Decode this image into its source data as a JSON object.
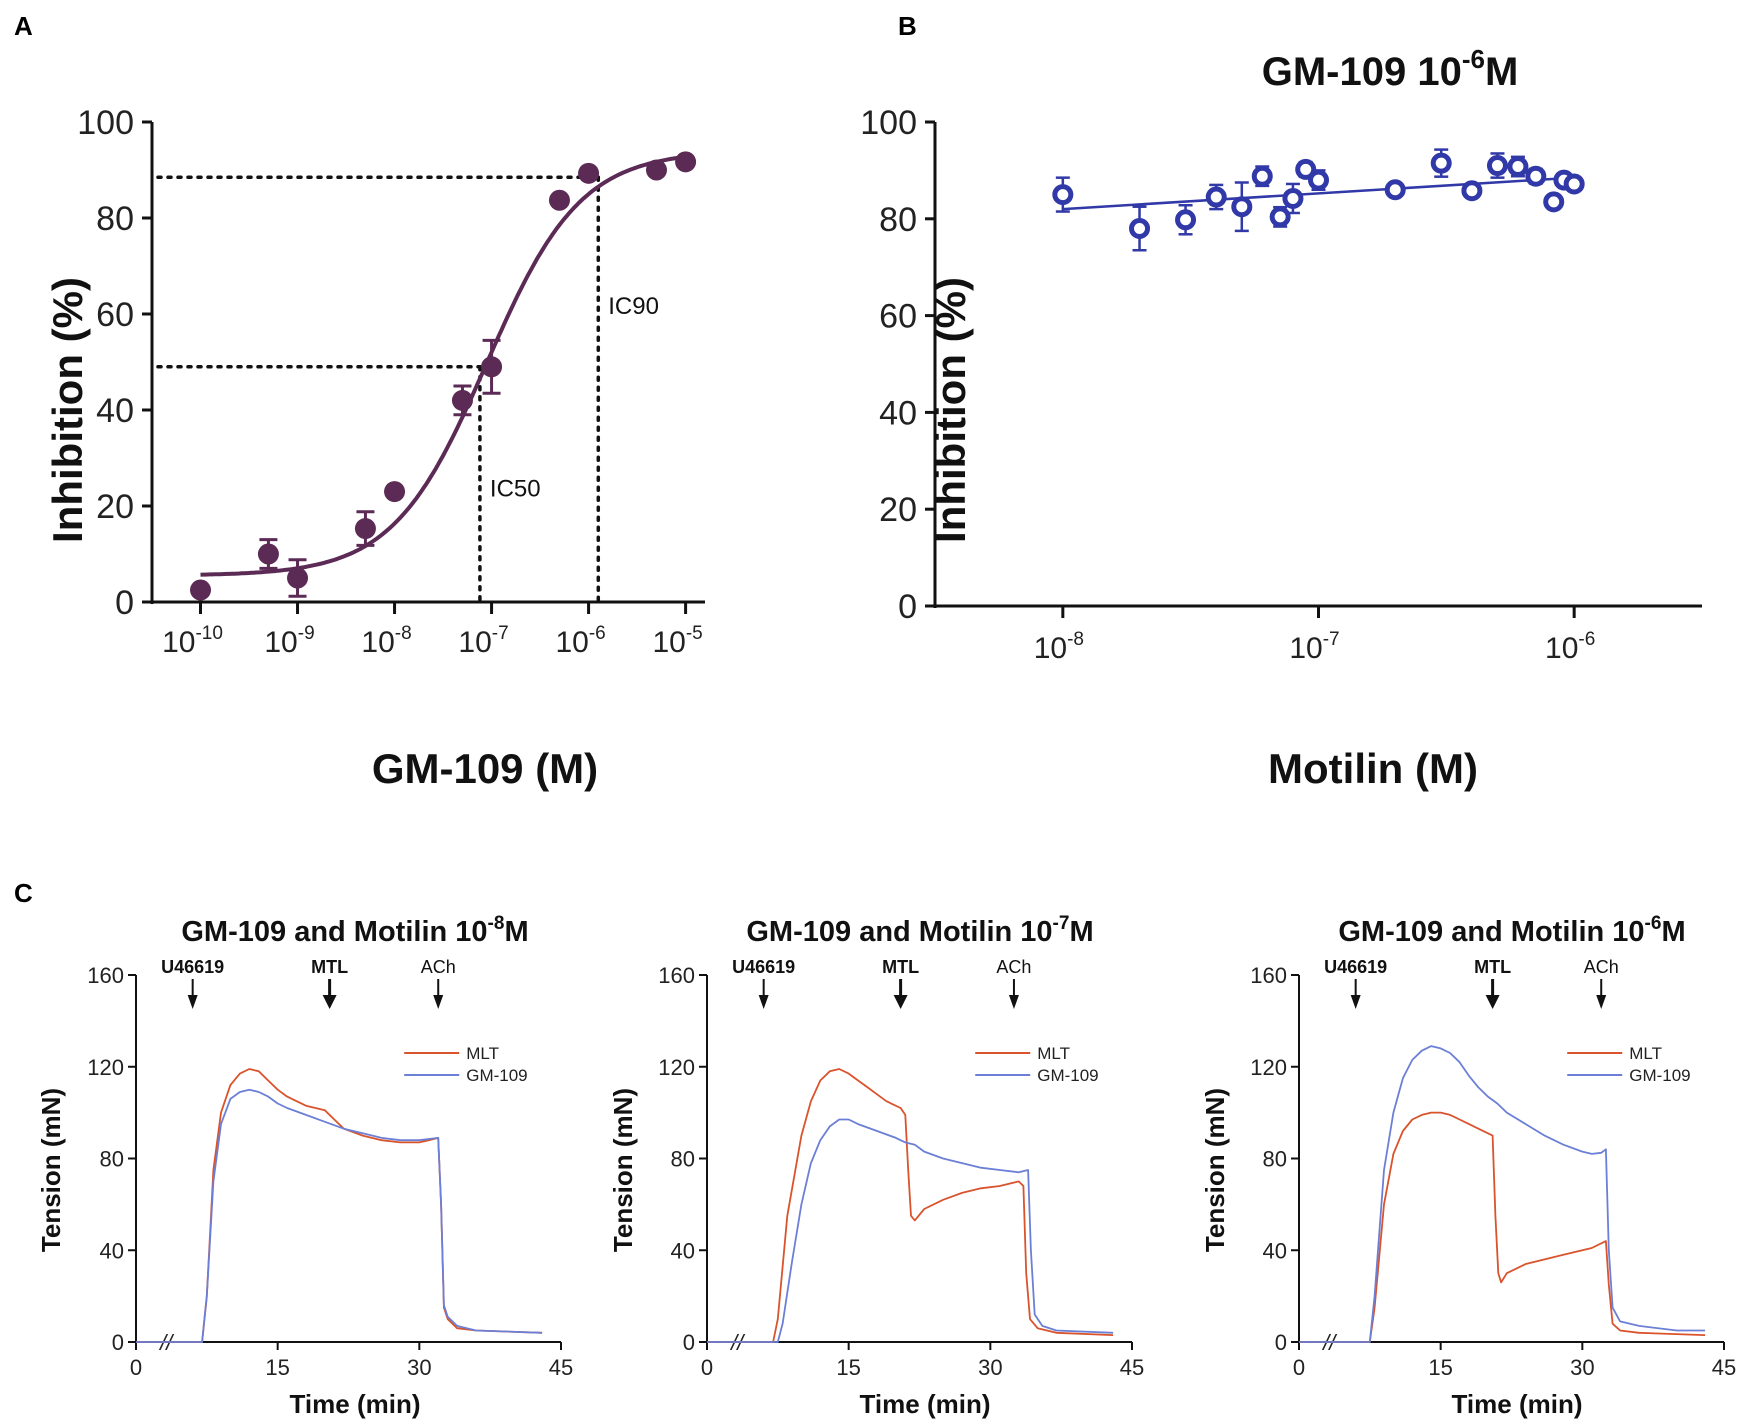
{
  "panel_labels": {
    "a": "A",
    "b": "B",
    "c": "C"
  },
  "colors": {
    "purple": "#5B2A55",
    "blue": "#3138A8",
    "mlt": "#D9532C",
    "gm109": "#6C7FD6",
    "axis": "#111111"
  },
  "chart_data": [
    {
      "id": "A",
      "type": "scatter",
      "title": "",
      "xlabel": "GM-109 (M)",
      "ylabel": "Inhibition (%)",
      "x_scale": "log10",
      "xlim": [
        -10.5,
        -4.8
      ],
      "ylim": [
        0,
        100
      ],
      "yticks": [
        0,
        20,
        40,
        60,
        80,
        100
      ],
      "xtick_labels": [
        {
          "exp": -10,
          "base": "10",
          "sup": "-10"
        },
        {
          "exp": -9,
          "base": "10",
          "sup": "-9"
        },
        {
          "exp": -8,
          "base": "10",
          "sup": "-8"
        },
        {
          "exp": -7,
          "base": "10",
          "sup": "-7"
        },
        {
          "exp": -6,
          "base": "10",
          "sup": "-6"
        },
        {
          "exp": -5,
          "base": "10",
          "sup": "-5"
        }
      ],
      "points": [
        {
          "logx": -10.0,
          "y": 2.5,
          "err": 0
        },
        {
          "logx": -9.3,
          "y": 10.0,
          "err": 3
        },
        {
          "logx": -9.0,
          "y": 5.0,
          "err": 3.8
        },
        {
          "logx": -8.3,
          "y": 15.3,
          "err": 3.5
        },
        {
          "logx": -8.0,
          "y": 23.0,
          "err": 0
        },
        {
          "logx": -7.3,
          "y": 42.0,
          "err": 3
        },
        {
          "logx": -7.0,
          "y": 49.0,
          "err": 5.5
        },
        {
          "logx": -6.3,
          "y": 83.7,
          "err": 0
        },
        {
          "logx": -6.0,
          "y": 89.3,
          "err": 0
        },
        {
          "logx": -5.3,
          "y": 90.0,
          "err": 0
        },
        {
          "logx": -5.0,
          "y": 91.7,
          "err": 0
        }
      ],
      "fit": {
        "bottom": 5.5,
        "top": 94.0,
        "logIC50": -7.05,
        "hill": 0.9
      },
      "reference_lines": [
        {
          "label": "IC50",
          "y": 49,
          "logx": -7.12
        },
        {
          "label": "IC90",
          "y": 88.5,
          "logx": -5.9
        }
      ]
    },
    {
      "id": "B",
      "type": "scatter",
      "title": "GM-109 10",
      "title_sup": "-6",
      "title_suffix": "M",
      "xlabel": "Motilin (M)",
      "ylabel": "Inhibition (%)",
      "x_scale": "log10",
      "xlim": [
        -8.5,
        -5.5
      ],
      "ylim": [
        0,
        100
      ],
      "yticks": [
        0,
        20,
        40,
        60,
        80,
        100
      ],
      "xtick_labels": [
        {
          "exp": -8,
          "base": "10",
          "sup": "-8"
        },
        {
          "exp": -7,
          "base": "10",
          "sup": "-7"
        },
        {
          "exp": -6,
          "base": "10",
          "sup": "-6"
        }
      ],
      "points": [
        {
          "logx": -8.0,
          "y": 85.0,
          "err": 3.5
        },
        {
          "logx": -7.7,
          "y": 78.0,
          "err": 4.5
        },
        {
          "logx": -7.52,
          "y": 79.8,
          "err": 3
        },
        {
          "logx": -7.4,
          "y": 84.5,
          "err": 2.5
        },
        {
          "logx": -7.3,
          "y": 82.5,
          "err": 5
        },
        {
          "logx": -7.22,
          "y": 88.8,
          "err": 2
        },
        {
          "logx": -7.15,
          "y": 80.4,
          "err": 2
        },
        {
          "logx": -7.1,
          "y": 84.2,
          "err": 3
        },
        {
          "logx": -7.05,
          "y": 90.2,
          "err": 1.5
        },
        {
          "logx": -7.0,
          "y": 88.0,
          "err": 2
        },
        {
          "logx": -6.7,
          "y": 86.0,
          "err": 1
        },
        {
          "logx": -6.52,
          "y": 91.5,
          "err": 2.8
        },
        {
          "logx": -6.4,
          "y": 85.8,
          "err": 1
        },
        {
          "logx": -6.3,
          "y": 91.0,
          "err": 2.5
        },
        {
          "logx": -6.22,
          "y": 90.8,
          "err": 2
        },
        {
          "logx": -6.15,
          "y": 88.8,
          "err": 1.5
        },
        {
          "logx": -6.08,
          "y": 83.5,
          "err": 1
        },
        {
          "logx": -6.04,
          "y": 88.0,
          "err": 1
        },
        {
          "logx": -6.0,
          "y": 87.2,
          "err": 1
        }
      ],
      "regression": {
        "from": [
          -8.0,
          82.0
        ],
        "to": [
          -6.0,
          88.5
        ]
      }
    },
    {
      "id": "C1",
      "type": "line",
      "title": "GM-109 and Motilin 10",
      "title_sup": "-8",
      "title_suffix": "M",
      "xlabel": "Time (min)",
      "ylabel": "Tension (mN)",
      "xlim": [
        0,
        45
      ],
      "ylim": [
        0,
        160
      ],
      "xticks": [
        0,
        15,
        30,
        45
      ],
      "yticks": [
        0,
        40,
        80,
        120,
        160
      ],
      "break_mark": "//",
      "arrows": [
        {
          "label": "U46619",
          "t": 6
        },
        {
          "label": "MTL",
          "t": 20.5
        },
        {
          "label": "ACh",
          "t": 32
        }
      ],
      "legend": [
        "MLT",
        "GM-109"
      ],
      "series": [
        {
          "name": "MLT",
          "points": [
            [
              0,
              0
            ],
            [
              7,
              0
            ],
            [
              7.5,
              20
            ],
            [
              8.2,
              75
            ],
            [
              9,
              100
            ],
            [
              10,
              112
            ],
            [
              11,
              117
            ],
            [
              12,
              119
            ],
            [
              13,
              118
            ],
            [
              14,
              114
            ],
            [
              15,
              110
            ],
            [
              16,
              107
            ],
            [
              17,
              105
            ],
            [
              18,
              103
            ],
            [
              19,
              102
            ],
            [
              20,
              101
            ],
            [
              21,
              97
            ],
            [
              22,
              93
            ],
            [
              24,
              90
            ],
            [
              26,
              88
            ],
            [
              28,
              87
            ],
            [
              30,
              87
            ],
            [
              31,
              88
            ],
            [
              32,
              89
            ],
            [
              32.3,
              60
            ],
            [
              32.6,
              15
            ],
            [
              33,
              10
            ],
            [
              34,
              6
            ],
            [
              36,
              5
            ],
            [
              43,
              4
            ]
          ]
        },
        {
          "name": "GM-109",
          "points": [
            [
              0,
              0
            ],
            [
              7,
              0
            ],
            [
              7.5,
              20
            ],
            [
              8.2,
              70
            ],
            [
              9,
              95
            ],
            [
              10,
              106
            ],
            [
              11,
              109
            ],
            [
              12,
              110
            ],
            [
              13,
              109
            ],
            [
              14,
              107
            ],
            [
              15,
              104
            ],
            [
              16,
              102
            ],
            [
              18,
              99
            ],
            [
              20,
              96
            ],
            [
              22,
              93
            ],
            [
              24,
              91
            ],
            [
              26,
              89
            ],
            [
              28,
              88
            ],
            [
              30,
              88
            ],
            [
              31,
              88.5
            ],
            [
              32,
              89
            ],
            [
              32.3,
              60
            ],
            [
              32.6,
              16
            ],
            [
              33,
              11
            ],
            [
              34,
              7
            ],
            [
              36,
              5
            ],
            [
              43,
              4
            ]
          ]
        }
      ]
    },
    {
      "id": "C2",
      "type": "line",
      "title": "GM-109 and Motilin 10",
      "title_sup": "-7",
      "title_suffix": "M",
      "xlabel": "Time (min)",
      "ylabel": "Tension (mN)",
      "xlim": [
        0,
        45
      ],
      "ylim": [
        0,
        160
      ],
      "xticks": [
        0,
        15,
        30,
        45
      ],
      "yticks": [
        0,
        40,
        80,
        120,
        160
      ],
      "break_mark": "//",
      "arrows": [
        {
          "label": "U46619",
          "t": 6
        },
        {
          "label": "MTL",
          "t": 20.5
        },
        {
          "label": "ACh",
          "t": 32.5
        }
      ],
      "legend": [
        "MLT",
        "GM-109"
      ],
      "series": [
        {
          "name": "MLT",
          "points": [
            [
              0,
              0
            ],
            [
              7,
              0
            ],
            [
              7.5,
              10
            ],
            [
              8.5,
              55
            ],
            [
              10,
              90
            ],
            [
              11,
              105
            ],
            [
              12,
              114
            ],
            [
              13,
              118
            ],
            [
              14,
              119
            ],
            [
              15,
              117
            ],
            [
              16,
              114
            ],
            [
              17,
              111
            ],
            [
              18,
              108
            ],
            [
              19,
              105
            ],
            [
              20.5,
              102
            ],
            [
              21,
              99
            ],
            [
              21.3,
              75
            ],
            [
              21.6,
              55
            ],
            [
              22,
              53
            ],
            [
              23,
              58
            ],
            [
              25,
              62
            ],
            [
              27,
              65
            ],
            [
              29,
              67
            ],
            [
              31,
              68
            ],
            [
              33,
              70
            ],
            [
              33.5,
              68
            ],
            [
              33.8,
              30
            ],
            [
              34.2,
              10
            ],
            [
              35,
              6
            ],
            [
              37,
              4
            ],
            [
              43,
              3
            ]
          ]
        },
        {
          "name": "GM-109",
          "points": [
            [
              0,
              0
            ],
            [
              7.5,
              0
            ],
            [
              8,
              8
            ],
            [
              9,
              35
            ],
            [
              10,
              60
            ],
            [
              11,
              78
            ],
            [
              12,
              88
            ],
            [
              13,
              94
            ],
            [
              14,
              97
            ],
            [
              15,
              97
            ],
            [
              16,
              95
            ],
            [
              18,
              92
            ],
            [
              20,
              89
            ],
            [
              21,
              87
            ],
            [
              22,
              86
            ],
            [
              23,
              83
            ],
            [
              25,
              80
            ],
            [
              27,
              78
            ],
            [
              29,
              76
            ],
            [
              31,
              75
            ],
            [
              33,
              74
            ],
            [
              34,
              75
            ],
            [
              34.3,
              40
            ],
            [
              34.7,
              12
            ],
            [
              35.5,
              7
            ],
            [
              37,
              5
            ],
            [
              43,
              4
            ]
          ]
        }
      ]
    },
    {
      "id": "C3",
      "type": "line",
      "title": "GM-109 and Motilin 10",
      "title_sup": "-6",
      "title_suffix": "M",
      "xlabel": "Time (min)",
      "ylabel": "Tension (mN)",
      "xlim": [
        0,
        45
      ],
      "ylim": [
        0,
        160
      ],
      "xticks": [
        0,
        15,
        30,
        45
      ],
      "yticks": [
        0,
        40,
        80,
        120,
        160
      ],
      "break_mark": "//",
      "arrows": [
        {
          "label": "U46619",
          "t": 6
        },
        {
          "label": "MTL",
          "t": 20.5
        },
        {
          "label": "ACh",
          "t": 32
        }
      ],
      "legend": [
        "MLT",
        "GM-109"
      ],
      "series": [
        {
          "name": "MLT",
          "points": [
            [
              0,
              0
            ],
            [
              7.5,
              0
            ],
            [
              8,
              15
            ],
            [
              9,
              60
            ],
            [
              10,
              82
            ],
            [
              11,
              92
            ],
            [
              12,
              97
            ],
            [
              13,
              99
            ],
            [
              14,
              100
            ],
            [
              15,
              100
            ],
            [
              16,
              99
            ],
            [
              17,
              97
            ],
            [
              18,
              95
            ],
            [
              19,
              93
            ],
            [
              20.5,
              90
            ],
            [
              20.8,
              55
            ],
            [
              21.1,
              30
            ],
            [
              21.4,
              26
            ],
            [
              22,
              30
            ],
            [
              24,
              34
            ],
            [
              26,
              36
            ],
            [
              28,
              38
            ],
            [
              30,
              40
            ],
            [
              31,
              41
            ],
            [
              32.5,
              44
            ],
            [
              32.8,
              25
            ],
            [
              33.2,
              8
            ],
            [
              34,
              5
            ],
            [
              36,
              4
            ],
            [
              43,
              3
            ]
          ]
        },
        {
          "name": "GM-109",
          "points": [
            [
              0,
              0
            ],
            [
              7.5,
              0
            ],
            [
              8,
              20
            ],
            [
              9,
              75
            ],
            [
              10,
              100
            ],
            [
              11,
              115
            ],
            [
              12,
              123
            ],
            [
              13,
              127
            ],
            [
              14,
              129
            ],
            [
              15,
              128
            ],
            [
              16,
              126
            ],
            [
              17,
              122
            ],
            [
              18,
              116
            ],
            [
              19,
              111
            ],
            [
              20,
              107
            ],
            [
              21,
              104
            ],
            [
              22,
              100
            ],
            [
              24,
              95
            ],
            [
              26,
              90
            ],
            [
              28,
              86
            ],
            [
              30,
              83
            ],
            [
              31,
              82
            ],
            [
              32,
              82.5
            ],
            [
              32.5,
              84
            ],
            [
              32.8,
              40
            ],
            [
              33.2,
              15
            ],
            [
              34,
              9
            ],
            [
              36,
              7
            ],
            [
              40,
              5
            ],
            [
              43,
              5
            ]
          ]
        }
      ]
    }
  ]
}
